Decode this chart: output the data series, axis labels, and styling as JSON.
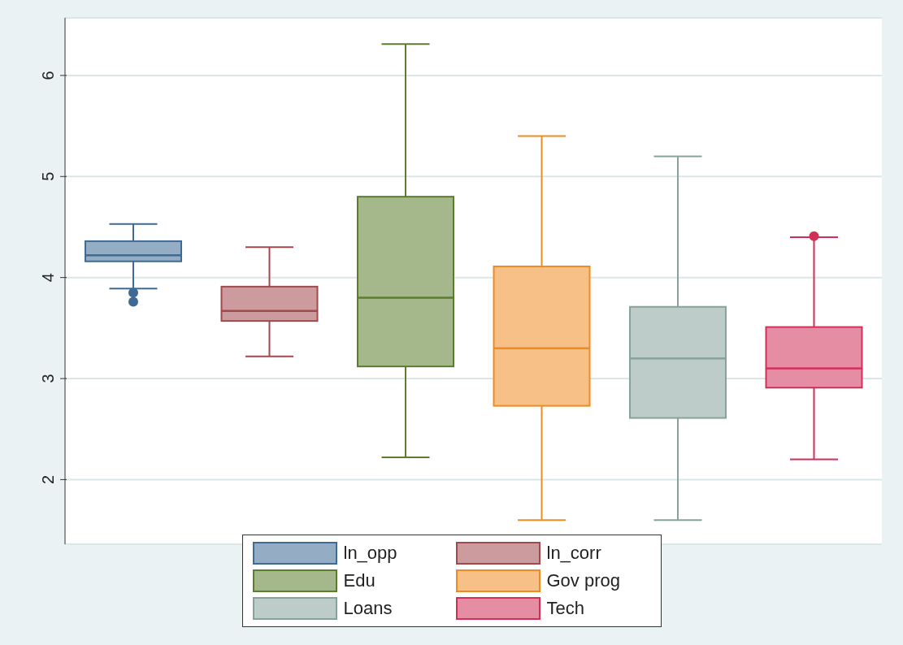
{
  "chart_data": {
    "type": "box",
    "categories": [
      null,
      null,
      null,
      null,
      null,
      null
    ],
    "ylim": [
      1.36,
      6.57
    ],
    "yticks": [
      2,
      3,
      4,
      5,
      6
    ],
    "grid": "y",
    "legend": "bottom",
    "tick_labels": "y",
    "series": [
      {
        "name": "ln_opp",
        "color": "#3e6a93",
        "boxes": [
          {
            "low": 3.89,
            "q1": 4.16,
            "median": 4.22,
            "q3": 4.36,
            "high": 4.53,
            "outliers": [
              3.85,
              3.76
            ]
          },
          null,
          null,
          null,
          null,
          null
        ]
      },
      {
        "name": "ln_corr",
        "color": "#a0494f",
        "boxes": [
          null,
          {
            "low": 3.22,
            "q1": 3.57,
            "median": 3.67,
            "q3": 3.91,
            "high": 4.3
          },
          null,
          null,
          null,
          null
        ]
      },
      {
        "name": "Edu",
        "color": "#5b7d2d",
        "boxes": [
          null,
          null,
          {
            "low": 2.22,
            "q1": 3.12,
            "median": 3.8,
            "q3": 4.8,
            "high": 6.31
          },
          null,
          null,
          null
        ]
      },
      {
        "name": "Gov prog",
        "color": "#ee8c23",
        "boxes": [
          null,
          null,
          null,
          {
            "low": 1.6,
            "q1": 2.73,
            "median": 3.3,
            "q3": 4.11,
            "high": 5.4
          },
          null,
          null
        ]
      },
      {
        "name": "Loans",
        "color": "#87a29b",
        "boxes": [
          null,
          null,
          null,
          null,
          {
            "low": 1.6,
            "q1": 2.61,
            "median": 3.2,
            "q3": 3.71,
            "high": 5.2
          },
          null
        ]
      },
      {
        "name": "Tech",
        "color": "#d03058",
        "boxes": [
          null,
          null,
          null,
          null,
          null,
          {
            "low": 2.2,
            "q1": 2.91,
            "median": 3.1,
            "q3": 3.51,
            "high": 4.4,
            "outliers": [
              4.41
            ]
          }
        ]
      }
    ]
  }
}
